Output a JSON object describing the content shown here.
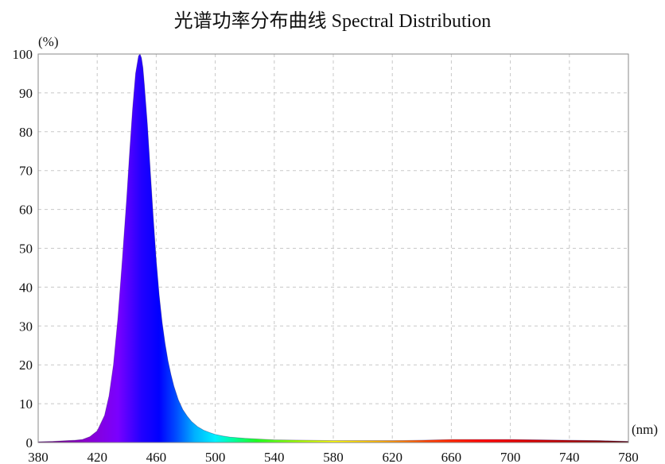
{
  "chart_data": {
    "type": "area",
    "title": "光谱功率分布曲线 Spectral Distribution",
    "ylabel": "(%)",
    "xlabel": "(nm)",
    "xlim": [
      380,
      780
    ],
    "ylim": [
      0,
      100
    ],
    "x_ticks": [
      380,
      420,
      460,
      500,
      540,
      580,
      620,
      660,
      700,
      740,
      780
    ],
    "y_ticks": [
      0,
      10,
      20,
      30,
      40,
      50,
      60,
      70,
      80,
      90,
      100
    ],
    "grid": true,
    "fill": "wavelength-color gradient",
    "series": [
      {
        "x": [
          380,
          390,
          400,
          405,
          410,
          415,
          420,
          425,
          428,
          431,
          434,
          437,
          440,
          442,
          444,
          446,
          448,
          449,
          450,
          451,
          452,
          454,
          456,
          458,
          460,
          462,
          464,
          466,
          468,
          470,
          472,
          475,
          478,
          481,
          484,
          488,
          492,
          496,
          500,
          505,
          510,
          520,
          530,
          540,
          560,
          580,
          600,
          620,
          640,
          660,
          680,
          700,
          720,
          740,
          760,
          780
        ],
        "y": [
          0.2,
          0.3,
          0.5,
          0.6,
          0.8,
          1.5,
          3,
          7,
          12,
          20,
          32,
          47,
          63,
          75,
          86,
          95,
          99.5,
          100,
          99,
          96.5,
          92,
          82,
          70,
          58,
          47,
          38,
          31,
          25.5,
          21,
          17.5,
          14.5,
          11,
          8.5,
          6.8,
          5.4,
          4.1,
          3.2,
          2.6,
          2.1,
          1.7,
          1.4,
          1.1,
          0.9,
          0.7,
          0.6,
          0.5,
          0.5,
          0.5,
          0.6,
          0.8,
          0.8,
          0.8,
          0.7,
          0.6,
          0.5,
          0.3
        ]
      }
    ]
  }
}
